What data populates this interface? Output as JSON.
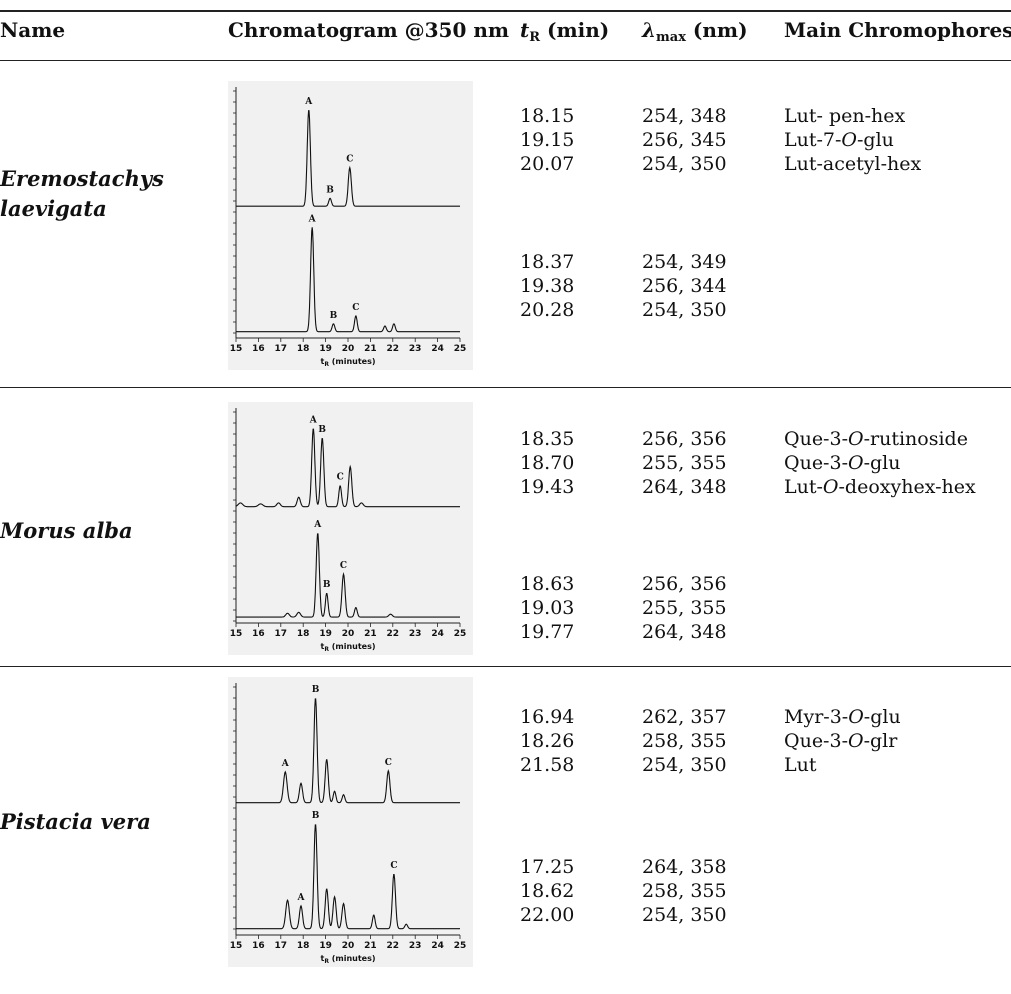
{
  "headers": {
    "name": "Name",
    "chromatogram": "Chromatogram @350 nm",
    "tr_symbol": "t",
    "tr_sub": "R",
    "tr_unit": " (min)",
    "lambda_symbol": "λ",
    "lambda_sub": "max",
    "lambda_unit": " (nm)",
    "chromophores": "Main Chromophores"
  },
  "rows": [
    {
      "name": "Eremostachys\nlaevigata",
      "top": {
        "tr": [
          "18.15",
          "19.15",
          "20.07"
        ],
        "lambda": [
          "254, 348",
          "256, 345",
          "254, 350"
        ],
        "chromophores": [
          {
            "parts": [
              "Lut- pen-hex"
            ]
          },
          {
            "parts": [
              "Lut-7-",
              "O",
              "-glu"
            ]
          },
          {
            "parts": [
              "Lut-acetyl-hex"
            ]
          }
        ]
      },
      "bottom": {
        "tr": [
          "18.37",
          "19.38",
          "20.28"
        ],
        "lambda": [
          "254, 349",
          "256, 344",
          "254, 350"
        ]
      },
      "chart": {
        "traces": [
          {
            "baseline": 0.02,
            "peaks": [
              {
                "x": 18.25,
                "h": 0.85,
                "w": 0.07,
                "label": "A"
              },
              {
                "x": 19.2,
                "h": 0.07,
                "w": 0.06,
                "label": "B"
              },
              {
                "x": 20.08,
                "h": 0.34,
                "w": 0.07,
                "label": "C"
              }
            ]
          },
          {
            "baseline": 0.02,
            "peaks": [
              {
                "x": 18.4,
                "h": 0.92,
                "w": 0.07,
                "label": "A"
              },
              {
                "x": 19.35,
                "h": 0.07,
                "w": 0.06,
                "label": "B"
              },
              {
                "x": 20.35,
                "h": 0.14,
                "w": 0.06,
                "label": "C"
              },
              {
                "x": 21.65,
                "h": 0.05,
                "w": 0.06
              },
              {
                "x": 22.05,
                "h": 0.07,
                "w": 0.06
              }
            ]
          }
        ]
      }
    },
    {
      "name": "Morus alba",
      "top": {
        "tr": [
          "18.35",
          "18.70",
          "19.43"
        ],
        "lambda": [
          "256, 356",
          "255, 355",
          "264, 348"
        ],
        "chromophores": [
          {
            "parts": [
              "Que-3-",
              "O",
              "-rutinoside"
            ]
          },
          {
            "parts": [
              "Que-3-",
              "O",
              "-glu"
            ]
          },
          {
            "parts": [
              "Lut-",
              "O",
              "-deoxyhex-hex"
            ]
          }
        ]
      },
      "bottom": {
        "tr": [
          "18.63",
          "19.03",
          "19.77"
        ],
        "lambda": [
          "256, 356",
          "255, 355",
          "264, 348"
        ]
      },
      "chart": {
        "traces": [
          {
            "baseline": 0.05,
            "peaks": [
              {
                "x": 15.2,
                "h": 0.04,
                "w": 0.1
              },
              {
                "x": 16.1,
                "h": 0.03,
                "w": 0.1
              },
              {
                "x": 16.9,
                "h": 0.04,
                "w": 0.08
              },
              {
                "x": 17.8,
                "h": 0.1,
                "w": 0.07
              },
              {
                "x": 18.45,
                "h": 0.82,
                "w": 0.07,
                "label": "A"
              },
              {
                "x": 18.85,
                "h": 0.72,
                "w": 0.07,
                "label": "B"
              },
              {
                "x": 19.65,
                "h": 0.22,
                "w": 0.06,
                "label": "C"
              },
              {
                "x": 20.1,
                "h": 0.42,
                "w": 0.07
              },
              {
                "x": 20.6,
                "h": 0.04,
                "w": 0.08
              }
            ]
          },
          {
            "baseline": 0.02,
            "peaks": [
              {
                "x": 17.3,
                "h": 0.04,
                "w": 0.08
              },
              {
                "x": 17.8,
                "h": 0.05,
                "w": 0.08
              },
              {
                "x": 18.65,
                "h": 0.88,
                "w": 0.07,
                "label": "A"
              },
              {
                "x": 19.05,
                "h": 0.25,
                "w": 0.06,
                "label": "B"
              },
              {
                "x": 19.8,
                "h": 0.45,
                "w": 0.07,
                "label": "C"
              },
              {
                "x": 20.35,
                "h": 0.1,
                "w": 0.06
              },
              {
                "x": 21.9,
                "h": 0.03,
                "w": 0.08
              }
            ]
          }
        ]
      }
    },
    {
      "name": "Pistacia vera",
      "top": {
        "tr": [
          "16.94",
          "18.26",
          "21.58"
        ],
        "lambda": [
          "262, 357",
          "258, 355",
          "254, 350"
        ],
        "chromophores": [
          {
            "parts": [
              "Myr-3-",
              "O",
              "-glu"
            ]
          },
          {
            "parts": [
              "Que-3-",
              "O",
              "-glr"
            ]
          },
          {
            "parts": [
              "Lut"
            ]
          }
        ]
      },
      "bottom": {
        "tr": [
          "17.25",
          "18.62",
          "22.00"
        ],
        "lambda": [
          "264, 358",
          "258, 355",
          "254, 350"
        ]
      },
      "chart": {
        "traces": [
          {
            "baseline": 0.02,
            "peaks": [
              {
                "x": 17.2,
                "h": 0.27,
                "w": 0.08,
                "label": "A"
              },
              {
                "x": 17.9,
                "h": 0.17,
                "w": 0.07
              },
              {
                "x": 18.55,
                "h": 0.92,
                "w": 0.07,
                "label": "B"
              },
              {
                "x": 19.05,
                "h": 0.38,
                "w": 0.07
              },
              {
                "x": 19.4,
                "h": 0.1,
                "w": 0.06
              },
              {
                "x": 19.8,
                "h": 0.07,
                "w": 0.06
              },
              {
                "x": 21.8,
                "h": 0.28,
                "w": 0.07,
                "label": "C"
              }
            ]
          },
          {
            "baseline": 0.02,
            "peaks": [
              {
                "x": 17.3,
                "h": 0.25,
                "w": 0.08
              },
              {
                "x": 17.9,
                "h": 0.2,
                "w": 0.07,
                "label": "A"
              },
              {
                "x": 18.55,
                "h": 0.92,
                "w": 0.07,
                "label": "B"
              },
              {
                "x": 19.05,
                "h": 0.35,
                "w": 0.07
              },
              {
                "x": 19.4,
                "h": 0.28,
                "w": 0.07
              },
              {
                "x": 19.8,
                "h": 0.22,
                "w": 0.07
              },
              {
                "x": 21.15,
                "h": 0.12,
                "w": 0.06
              },
              {
                "x": 22.05,
                "h": 0.48,
                "w": 0.07,
                "label": "C"
              },
              {
                "x": 22.6,
                "h": 0.04,
                "w": 0.06
              }
            ]
          }
        ]
      }
    }
  ],
  "axis": {
    "ticks": [
      "15",
      "16",
      "17",
      "18",
      "19",
      "20",
      "21",
      "22",
      "23",
      "24",
      "25"
    ],
    "label_symbol": "t",
    "label_sub": "R",
    "label_rest": " (minutes)",
    "min": 15,
    "max": 25
  }
}
